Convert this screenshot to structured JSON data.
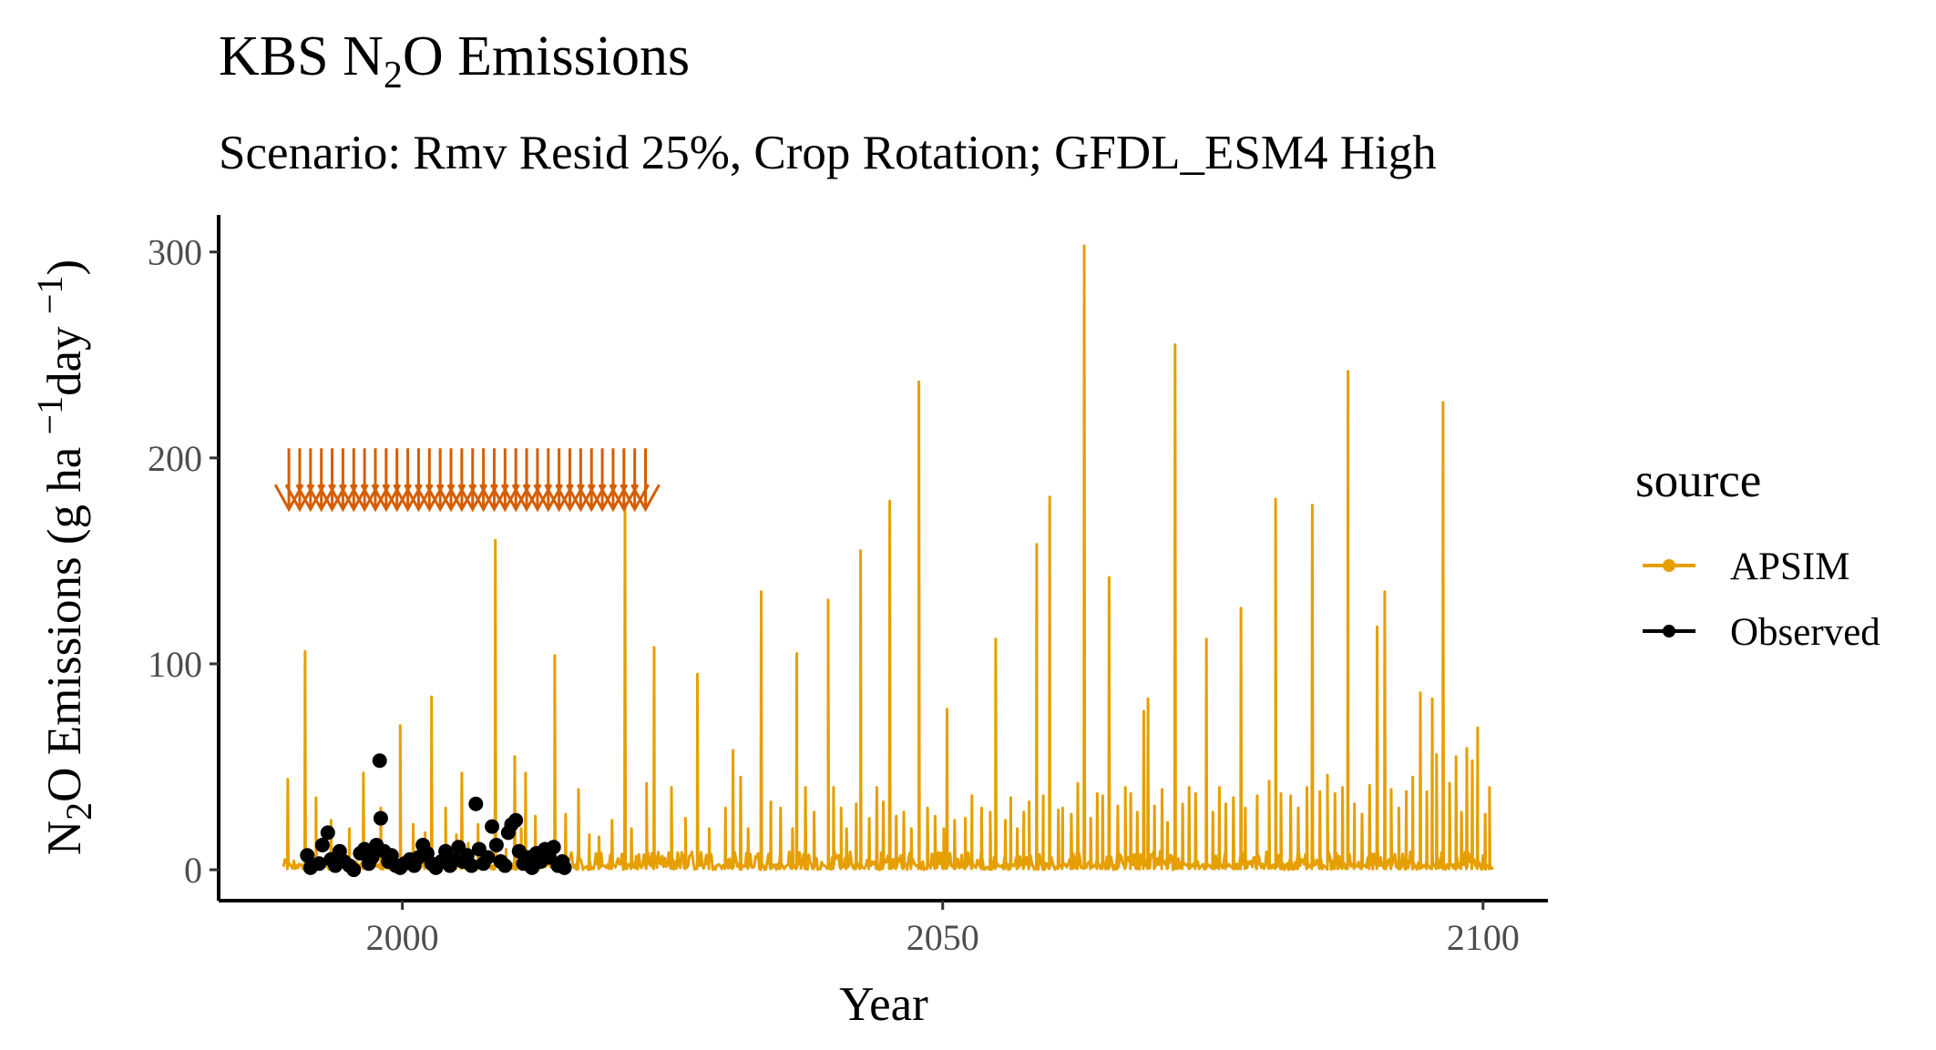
{
  "chart_data": {
    "type": "line",
    "title": {
      "prefix": "KBS N",
      "sub": "2",
      "suffix": "O Emissions"
    },
    "subtitle": "Scenario: Rmv Resid 25%, Crop Rotation; GFDL_ESM4 High",
    "xlabel": "Year",
    "ylabel": {
      "a": "N",
      "a_sub": "2",
      "b": "O Emissions (g ha ",
      "b_sup": "−1",
      "c": "day ",
      "c_sup": "−1",
      "d": ")"
    },
    "xlim": [
      1983,
      2106
    ],
    "ylim": [
      -15,
      318
    ],
    "x_ticks": [
      2000,
      2050,
      2100
    ],
    "y_ticks": [
      0,
      100,
      200,
      300
    ],
    "grid": false,
    "legend": {
      "title": "source",
      "position": "right",
      "entries": [
        {
          "label": "APSIM",
          "color": "#E69F00"
        },
        {
          "label": "Observed",
          "color": "#000000"
        }
      ]
    },
    "series": [
      {
        "name": "APSIM",
        "style": "line",
        "color": "#E69F00",
        "x_range": [
          1989,
          2101
        ],
        "peaks": [
          [
            1989.4,
            44
          ],
          [
            1991.0,
            106
          ],
          [
            1992.0,
            35
          ],
          [
            1993.4,
            24
          ],
          [
            1995.1,
            20
          ],
          [
            1996.4,
            47
          ],
          [
            1998.0,
            30
          ],
          [
            1999.8,
            70
          ],
          [
            2001.0,
            22
          ],
          [
            2002.1,
            18
          ],
          [
            2002.7,
            84
          ],
          [
            2004.0,
            30
          ],
          [
            2005.0,
            17
          ],
          [
            2005.5,
            47
          ],
          [
            2006.1,
            13
          ],
          [
            2007.0,
            22
          ],
          [
            2008.6,
            160
          ],
          [
            2009.6,
            10
          ],
          [
            2010.4,
            55
          ],
          [
            2011.0,
            20
          ],
          [
            2011.4,
            47
          ],
          [
            2012.3,
            26
          ],
          [
            2014.1,
            104
          ],
          [
            2015.1,
            27
          ],
          [
            2016.3,
            39
          ],
          [
            2017.3,
            17
          ],
          [
            2018.2,
            16
          ],
          [
            2019.4,
            24
          ],
          [
            2020.6,
            178
          ],
          [
            2021.2,
            20
          ],
          [
            2022.6,
            42
          ],
          [
            2023.3,
            108
          ],
          [
            2024.9,
            40
          ],
          [
            2026.2,
            25
          ],
          [
            2027.3,
            95
          ],
          [
            2028.4,
            20
          ],
          [
            2029.9,
            30
          ],
          [
            2030.6,
            58
          ],
          [
            2031.3,
            45
          ],
          [
            2032.0,
            20
          ],
          [
            2033.2,
            135
          ],
          [
            2034.1,
            33
          ],
          [
            2035.0,
            30
          ],
          [
            2036.1,
            20
          ],
          [
            2036.5,
            105
          ],
          [
            2037.3,
            40
          ],
          [
            2038.1,
            28
          ],
          [
            2039.4,
            131
          ],
          [
            2039.9,
            40
          ],
          [
            2040.6,
            30
          ],
          [
            2041.1,
            20
          ],
          [
            2042.0,
            32
          ],
          [
            2042.4,
            155
          ],
          [
            2043.2,
            25
          ],
          [
            2043.9,
            40
          ],
          [
            2044.5,
            33
          ],
          [
            2045.1,
            179
          ],
          [
            2045.7,
            26
          ],
          [
            2046.4,
            28
          ],
          [
            2047.1,
            20
          ],
          [
            2047.8,
            237
          ],
          [
            2048.6,
            30
          ],
          [
            2049.3,
            26
          ],
          [
            2050.1,
            20
          ],
          [
            2050.4,
            78
          ],
          [
            2051.1,
            24
          ],
          [
            2052.1,
            25
          ],
          [
            2052.7,
            36
          ],
          [
            2053.6,
            30
          ],
          [
            2054.4,
            28
          ],
          [
            2054.9,
            112
          ],
          [
            2055.8,
            24
          ],
          [
            2056.3,
            35
          ],
          [
            2056.9,
            20
          ],
          [
            2057.5,
            28
          ],
          [
            2058.0,
            33
          ],
          [
            2058.7,
            158
          ],
          [
            2059.3,
            36
          ],
          [
            2059.9,
            181
          ],
          [
            2060.7,
            29
          ],
          [
            2061.1,
            30
          ],
          [
            2061.9,
            27
          ],
          [
            2062.5,
            42
          ],
          [
            2063.1,
            303
          ],
          [
            2063.7,
            25
          ],
          [
            2064.3,
            37
          ],
          [
            2064.8,
            36
          ],
          [
            2065.4,
            142
          ],
          [
            2066.2,
            31
          ],
          [
            2066.9,
            40
          ],
          [
            2067.4,
            37
          ],
          [
            2068.0,
            28
          ],
          [
            2068.6,
            77
          ],
          [
            2069.0,
            83
          ],
          [
            2069.6,
            31
          ],
          [
            2070.3,
            39
          ],
          [
            2070.8,
            23
          ],
          [
            2071.5,
            255
          ],
          [
            2072.2,
            32
          ],
          [
            2072.8,
            40
          ],
          [
            2073.4,
            37
          ],
          [
            2074.4,
            112
          ],
          [
            2075.0,
            28
          ],
          [
            2075.6,
            40
          ],
          [
            2076.2,
            32
          ],
          [
            2076.9,
            35
          ],
          [
            2077.6,
            127
          ],
          [
            2078.0,
            30
          ],
          [
            2079.1,
            36
          ],
          [
            2080.2,
            43
          ],
          [
            2080.8,
            180
          ],
          [
            2081.3,
            37
          ],
          [
            2082.2,
            36
          ],
          [
            2082.9,
            30
          ],
          [
            2083.7,
            40
          ],
          [
            2084.2,
            177
          ],
          [
            2084.9,
            38
          ],
          [
            2085.6,
            46
          ],
          [
            2086.3,
            37
          ],
          [
            2087.0,
            40
          ],
          [
            2087.5,
            242
          ],
          [
            2088.1,
            32
          ],
          [
            2088.8,
            27
          ],
          [
            2089.5,
            41
          ],
          [
            2090.2,
            118
          ],
          [
            2090.9,
            135
          ],
          [
            2091.5,
            39
          ],
          [
            2092.2,
            30
          ],
          [
            2092.9,
            38
          ],
          [
            2093.5,
            45
          ],
          [
            2094.2,
            86
          ],
          [
            2094.8,
            38
          ],
          [
            2095.3,
            83
          ],
          [
            2095.7,
            56
          ],
          [
            2096.3,
            227
          ],
          [
            2096.9,
            42
          ],
          [
            2097.5,
            55
          ],
          [
            2098.0,
            28
          ],
          [
            2098.5,
            59
          ],
          [
            2099.0,
            53
          ],
          [
            2099.5,
            69
          ],
          [
            2100.2,
            27
          ],
          [
            2100.6,
            40
          ]
        ]
      },
      {
        "name": "Observed",
        "style": "points",
        "color": "#000000",
        "x_range": [
          1991,
          2015
        ],
        "points": [
          [
            1991.2,
            7
          ],
          [
            1991.5,
            1
          ],
          [
            1992.3,
            3
          ],
          [
            1992.6,
            12
          ],
          [
            1993.1,
            18
          ],
          [
            1993.4,
            5
          ],
          [
            1993.8,
            2
          ],
          [
            1994.2,
            9
          ],
          [
            1994.6,
            4
          ],
          [
            1995.1,
            2
          ],
          [
            1995.5,
            0
          ],
          [
            1996.1,
            8
          ],
          [
            1996.5,
            10
          ],
          [
            1996.9,
            3
          ],
          [
            1997.2,
            6
          ],
          [
            1997.6,
            12
          ],
          [
            1997.9,
            53
          ],
          [
            1998.0,
            25
          ],
          [
            1998.3,
            9
          ],
          [
            1998.7,
            4
          ],
          [
            1999.0,
            7
          ],
          [
            1999.4,
            2
          ],
          [
            1999.8,
            1
          ],
          [
            2000.2,
            3
          ],
          [
            2000.7,
            5
          ],
          [
            2001.1,
            2
          ],
          [
            2001.5,
            6
          ],
          [
            2001.9,
            12
          ],
          [
            2002.3,
            8
          ],
          [
            2002.7,
            3
          ],
          [
            2003.1,
            1
          ],
          [
            2003.6,
            4
          ],
          [
            2004.0,
            9
          ],
          [
            2004.4,
            2
          ],
          [
            2004.8,
            5
          ],
          [
            2005.2,
            11
          ],
          [
            2005.6,
            4
          ],
          [
            2006.0,
            7
          ],
          [
            2006.4,
            2
          ],
          [
            2006.8,
            32
          ],
          [
            2007.1,
            10
          ],
          [
            2007.5,
            3
          ],
          [
            2007.9,
            6
          ],
          [
            2008.3,
            21
          ],
          [
            2008.7,
            12
          ],
          [
            2009.1,
            4
          ],
          [
            2009.5,
            2
          ],
          [
            2009.8,
            18
          ],
          [
            2010.1,
            22
          ],
          [
            2010.5,
            24
          ],
          [
            2010.8,
            9
          ],
          [
            2011.2,
            3
          ],
          [
            2011.6,
            6
          ],
          [
            2012.0,
            1
          ],
          [
            2012.4,
            8
          ],
          [
            2012.8,
            4
          ],
          [
            2013.2,
            10
          ],
          [
            2013.6,
            6
          ],
          [
            2014.0,
            11
          ],
          [
            2014.4,
            2
          ],
          [
            2014.8,
            4
          ],
          [
            2015.0,
            1
          ]
        ]
      }
    ],
    "annotation": {
      "type": "arrows",
      "color": "#D55E00",
      "y": 187,
      "x": [
        1989.5,
        1990.5,
        1991.5,
        1992.5,
        1993.5,
        1994.5,
        1995.5,
        1996.5,
        1997.5,
        1998.5,
        1999.5,
        2000.5,
        2001.5,
        2002.5,
        2003.5,
        2004.5,
        2005.5,
        2006.5,
        2007.5,
        2008.5,
        2009.5,
        2010.5,
        2011.5,
        2012.5,
        2013.5,
        2014.5,
        2015.5,
        2016.5,
        2017.5,
        2018.5,
        2019.5,
        2020.5,
        2021.5,
        2022.5
      ]
    }
  }
}
